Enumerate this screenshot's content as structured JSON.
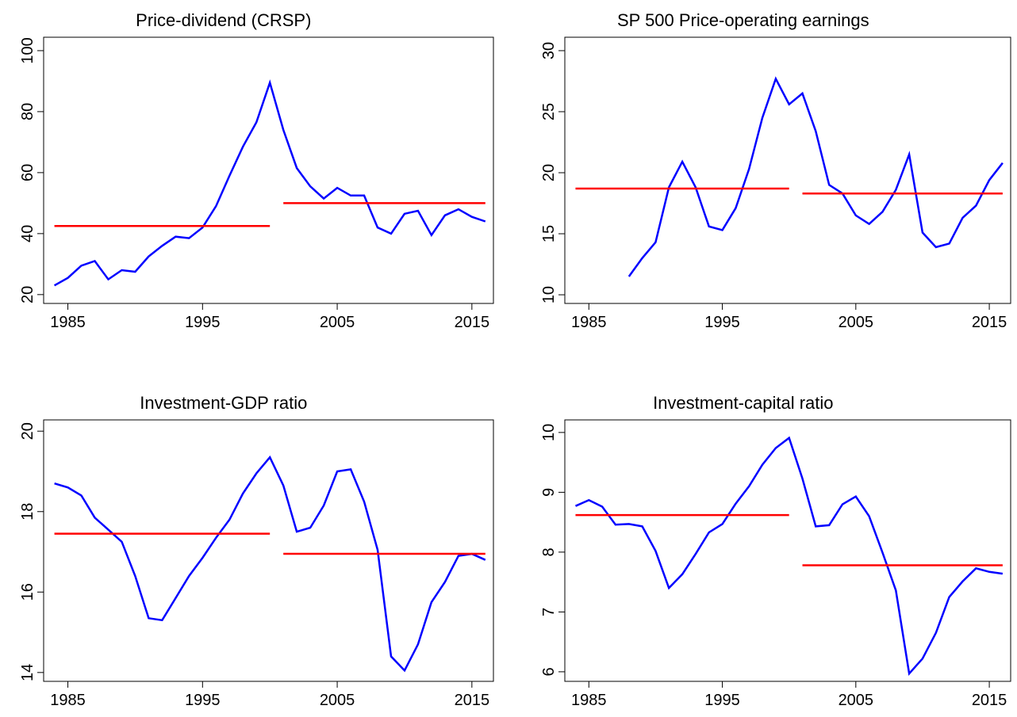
{
  "chart_data": [
    {
      "type": "line",
      "title": "Price-dividend (CRSP)",
      "x": [
        1984,
        1985,
        1986,
        1987,
        1988,
        1989,
        1990,
        1991,
        1992,
        1993,
        1994,
        1995,
        1996,
        1997,
        1998,
        1999,
        2000,
        2001,
        2002,
        2003,
        2004,
        2005,
        2006,
        2007,
        2008,
        2009,
        2010,
        2011,
        2012,
        2013,
        2014,
        2015,
        2016
      ],
      "series": [
        {
          "color": "#0000ff",
          "values": [
            23,
            25.5,
            29.5,
            31,
            25,
            28,
            27.5,
            32.5,
            36,
            39,
            38.5,
            42,
            49,
            59,
            68.5,
            76.5,
            89.5,
            74,
            61.5,
            55.5,
            51.5,
            55,
            52.5,
            52.5,
            42,
            40,
            46.5,
            47.5,
            39.5,
            46,
            48,
            45.5,
            44
          ]
        }
      ],
      "segments": [
        {
          "x": [
            1984,
            2000
          ],
          "value": 42.5,
          "color": "#ff0000"
        },
        {
          "x": [
            2001,
            2016
          ],
          "value": 50,
          "color": "#ff0000"
        }
      ],
      "xlim": [
        1983.2,
        2016.6
      ],
      "xticks": [
        1985,
        1995,
        2005,
        2015
      ],
      "ylim": [
        17.1,
        104.4
      ],
      "yticks": [
        20,
        40,
        60,
        80,
        100
      ]
    },
    {
      "type": "line",
      "title": "SP 500 Price-operating earnings",
      "x": [
        1984,
        1985,
        1986,
        1987,
        1988,
        1989,
        1990,
        1991,
        1992,
        1993,
        1994,
        1995,
        1996,
        1997,
        1998,
        1999,
        2000,
        2001,
        2002,
        2003,
        2004,
        2005,
        2006,
        2007,
        2008,
        2009,
        2010,
        2011,
        2012,
        2013,
        2014,
        2015,
        2016
      ],
      "series": [
        {
          "color": "#0000ff",
          "values": [
            null,
            null,
            null,
            null,
            11.5,
            13,
            14.3,
            18.8,
            20.9,
            18.8,
            15.6,
            15.3,
            17.1,
            20.3,
            24.5,
            27.7,
            25.6,
            26.5,
            23.4,
            19,
            18.3,
            16.5,
            15.8,
            16.8,
            18.6,
            21.5,
            15.1,
            13.9,
            14.2,
            16.3,
            17.3,
            19.4,
            20.8
          ]
        }
      ],
      "segments": [
        {
          "x": [
            1984,
            2000
          ],
          "value": 18.7,
          "color": "#ff0000"
        },
        {
          "x": [
            2001,
            2016
          ],
          "value": 18.3,
          "color": "#ff0000"
        }
      ],
      "xlim": [
        1983.2,
        2016.6
      ],
      "xticks": [
        1985,
        1995,
        2005,
        2015
      ],
      "ylim": [
        9.29,
        31.1
      ],
      "yticks": [
        10,
        15,
        20,
        25,
        30
      ]
    },
    {
      "type": "line",
      "title": "Investment-GDP ratio",
      "x": [
        1984,
        1985,
        1986,
        1987,
        1988,
        1989,
        1990,
        1991,
        1992,
        1993,
        1994,
        1995,
        1996,
        1997,
        1998,
        1999,
        2000,
        2001,
        2002,
        2003,
        2004,
        2005,
        2006,
        2007,
        2008,
        2009,
        2010,
        2011,
        2012,
        2013,
        2014,
        2015,
        2016
      ],
      "series": [
        {
          "color": "#0000ff",
          "values": [
            18.7,
            18.6,
            18.4,
            17.85,
            17.55,
            17.25,
            16.4,
            15.35,
            15.3,
            15.85,
            16.4,
            16.85,
            17.35,
            17.8,
            18.45,
            18.95,
            19.35,
            18.65,
            17.5,
            17.6,
            18.15,
            19.0,
            19.05,
            18.25,
            17.05,
            14.4,
            14.05,
            14.7,
            15.75,
            16.25,
            16.9,
            16.95,
            16.8
          ]
        }
      ],
      "segments": [
        {
          "x": [
            1984,
            2000
          ],
          "value": 17.45,
          "color": "#ff0000"
        },
        {
          "x": [
            2001,
            2016
          ],
          "value": 16.95,
          "color": "#ff0000"
        }
      ],
      "xlim": [
        1983.2,
        2016.6
      ],
      "xticks": [
        1985,
        1995,
        2005,
        2015
      ],
      "ylim": [
        13.78,
        20.28
      ],
      "yticks": [
        14,
        16,
        18,
        20
      ]
    },
    {
      "type": "line",
      "title": "Investment-capital ratio",
      "x": [
        1984,
        1985,
        1986,
        1987,
        1988,
        1989,
        1990,
        1991,
        1992,
        1993,
        1994,
        1995,
        1996,
        1997,
        1998,
        1999,
        2000,
        2001,
        2002,
        2003,
        2004,
        2005,
        2006,
        2007,
        2008,
        2009,
        2010,
        2011,
        2012,
        2013,
        2014,
        2015,
        2016
      ],
      "series": [
        {
          "color": "#0000ff",
          "values": [
            8.77,
            8.87,
            8.76,
            8.46,
            8.47,
            8.43,
            8.02,
            7.4,
            7.63,
            7.97,
            8.33,
            8.47,
            8.81,
            9.1,
            9.46,
            9.74,
            9.91,
            9.23,
            8.43,
            8.45,
            8.8,
            8.93,
            8.6,
            7.99,
            7.36,
            5.97,
            6.22,
            6.65,
            7.25,
            7.51,
            7.73,
            7.67,
            7.64
          ]
        }
      ],
      "segments": [
        {
          "x": [
            1984,
            2000
          ],
          "value": 8.62,
          "color": "#ff0000"
        },
        {
          "x": [
            2001,
            2016
          ],
          "value": 7.78,
          "color": "#ff0000"
        }
      ],
      "xlim": [
        1983.2,
        2016.6
      ],
      "xticks": [
        1985,
        1995,
        2005,
        2015
      ],
      "ylim": [
        5.84,
        10.21
      ],
      "yticks": [
        6,
        7,
        8,
        9,
        10
      ]
    }
  ]
}
